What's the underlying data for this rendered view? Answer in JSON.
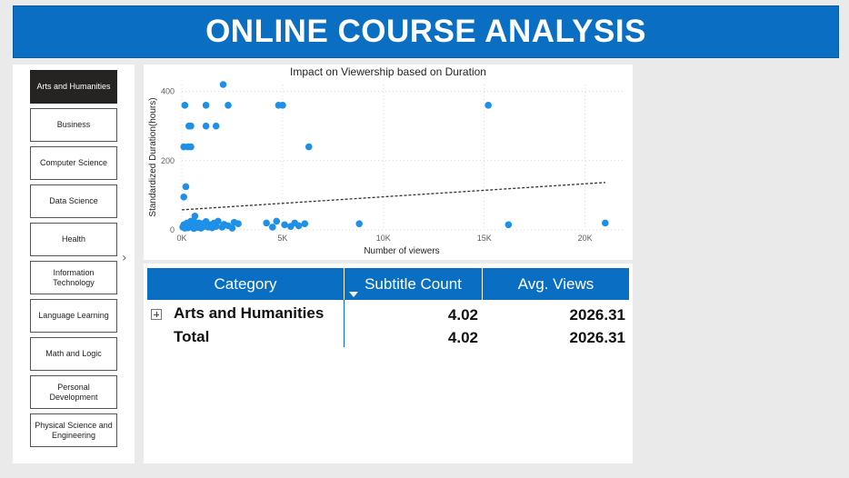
{
  "page_title": "ONLINE COURSE ANALYSIS",
  "slicer": {
    "items": [
      {
        "label": "Arts and Humanities",
        "selected": true
      },
      {
        "label": "Business",
        "selected": false
      },
      {
        "label": "Computer Science",
        "selected": false
      },
      {
        "label": "Data Science",
        "selected": false
      },
      {
        "label": "Health",
        "selected": false
      },
      {
        "label": "Information Technology",
        "selected": false
      },
      {
        "label": "Language Learning",
        "selected": false
      },
      {
        "label": "Math and Logic",
        "selected": false
      },
      {
        "label": "Personal Development",
        "selected": false
      },
      {
        "label": "Physical Science and Engineering",
        "selected": false
      }
    ],
    "expand_glyph": "›"
  },
  "chart_data": {
    "type": "scatter",
    "title": "Impact on Viewership based on Duration",
    "xlabel": "Number of viewers",
    "ylabel": "Standardized Duration(hours)",
    "xlim": [
      0,
      22000
    ],
    "ylim": [
      0,
      420
    ],
    "x_ticks": [
      {
        "value": 0,
        "label": "0K"
      },
      {
        "value": 5000,
        "label": "5K"
      },
      {
        "value": 10000,
        "label": "10K"
      },
      {
        "value": 15000,
        "label": "15K"
      },
      {
        "value": 20000,
        "label": "20K"
      }
    ],
    "y_ticks": [
      {
        "value": 0,
        "label": "0"
      },
      {
        "value": 200,
        "label": "200"
      },
      {
        "value": 400,
        "label": "400"
      }
    ],
    "grid": true,
    "point_color": "#1e90e8",
    "trendline": {
      "style": "dotted",
      "x": [
        0,
        21000
      ],
      "y": [
        58,
        137
      ]
    },
    "points": [
      {
        "x": 50,
        "y": 8
      },
      {
        "x": 100,
        "y": 15
      },
      {
        "x": 150,
        "y": 5
      },
      {
        "x": 200,
        "y": 12
      },
      {
        "x": 250,
        "y": 20
      },
      {
        "x": 300,
        "y": 6
      },
      {
        "x": 350,
        "y": 18
      },
      {
        "x": 400,
        "y": 10
      },
      {
        "x": 450,
        "y": 25
      },
      {
        "x": 500,
        "y": 8
      },
      {
        "x": 550,
        "y": 14
      },
      {
        "x": 600,
        "y": 4
      },
      {
        "x": 650,
        "y": 22
      },
      {
        "x": 700,
        "y": 9
      },
      {
        "x": 750,
        "y": 16
      },
      {
        "x": 800,
        "y": 7
      },
      {
        "x": 850,
        "y": 20
      },
      {
        "x": 900,
        "y": 12
      },
      {
        "x": 950,
        "y": 5
      },
      {
        "x": 1000,
        "y": 18
      },
      {
        "x": 1100,
        "y": 10
      },
      {
        "x": 1200,
        "y": 24
      },
      {
        "x": 1300,
        "y": 8
      },
      {
        "x": 1400,
        "y": 15
      },
      {
        "x": 1500,
        "y": 6
      },
      {
        "x": 1600,
        "y": 20
      },
      {
        "x": 1700,
        "y": 10
      },
      {
        "x": 1800,
        "y": 25
      },
      {
        "x": 2000,
        "y": 8
      },
      {
        "x": 2100,
        "y": 16
      },
      {
        "x": 2300,
        "y": 12
      },
      {
        "x": 2500,
        "y": 5
      },
      {
        "x": 2600,
        "y": 22
      },
      {
        "x": 2800,
        "y": 18
      },
      {
        "x": 4200,
        "y": 20
      },
      {
        "x": 4500,
        "y": 8
      },
      {
        "x": 4700,
        "y": 25
      },
      {
        "x": 5100,
        "y": 15
      },
      {
        "x": 5400,
        "y": 10
      },
      {
        "x": 5600,
        "y": 20
      },
      {
        "x": 5800,
        "y": 12
      },
      {
        "x": 6100,
        "y": 18
      },
      {
        "x": 8800,
        "y": 18
      },
      {
        "x": 16200,
        "y": 15
      },
      {
        "x": 21000,
        "y": 20
      },
      {
        "x": 150,
        "y": 360
      },
      {
        "x": 100,
        "y": 240
      },
      {
        "x": 300,
        "y": 240
      },
      {
        "x": 450,
        "y": 240
      },
      {
        "x": 200,
        "y": 125
      },
      {
        "x": 100,
        "y": 95
      },
      {
        "x": 350,
        "y": 300
      },
      {
        "x": 450,
        "y": 300
      },
      {
        "x": 650,
        "y": 40
      },
      {
        "x": 1200,
        "y": 300
      },
      {
        "x": 1200,
        "y": 360
      },
      {
        "x": 1700,
        "y": 300
      },
      {
        "x": 2050,
        "y": 420
      },
      {
        "x": 2300,
        "y": 360
      },
      {
        "x": 4800,
        "y": 360
      },
      {
        "x": 5000,
        "y": 360
      },
      {
        "x": 6300,
        "y": 240
      },
      {
        "x": 15200,
        "y": 360
      }
    ]
  },
  "table": {
    "columns": [
      "Category",
      "Subtitle Count",
      "Avg. Views"
    ],
    "rows": [
      {
        "category": "Arts and Humanities",
        "subtitle_count": "4.02",
        "avg_views": "2026.31"
      }
    ],
    "total": {
      "label": "Total",
      "subtitle_count": "4.02",
      "avg_views": "2026.31"
    },
    "header_color": "#0a6fc2"
  }
}
